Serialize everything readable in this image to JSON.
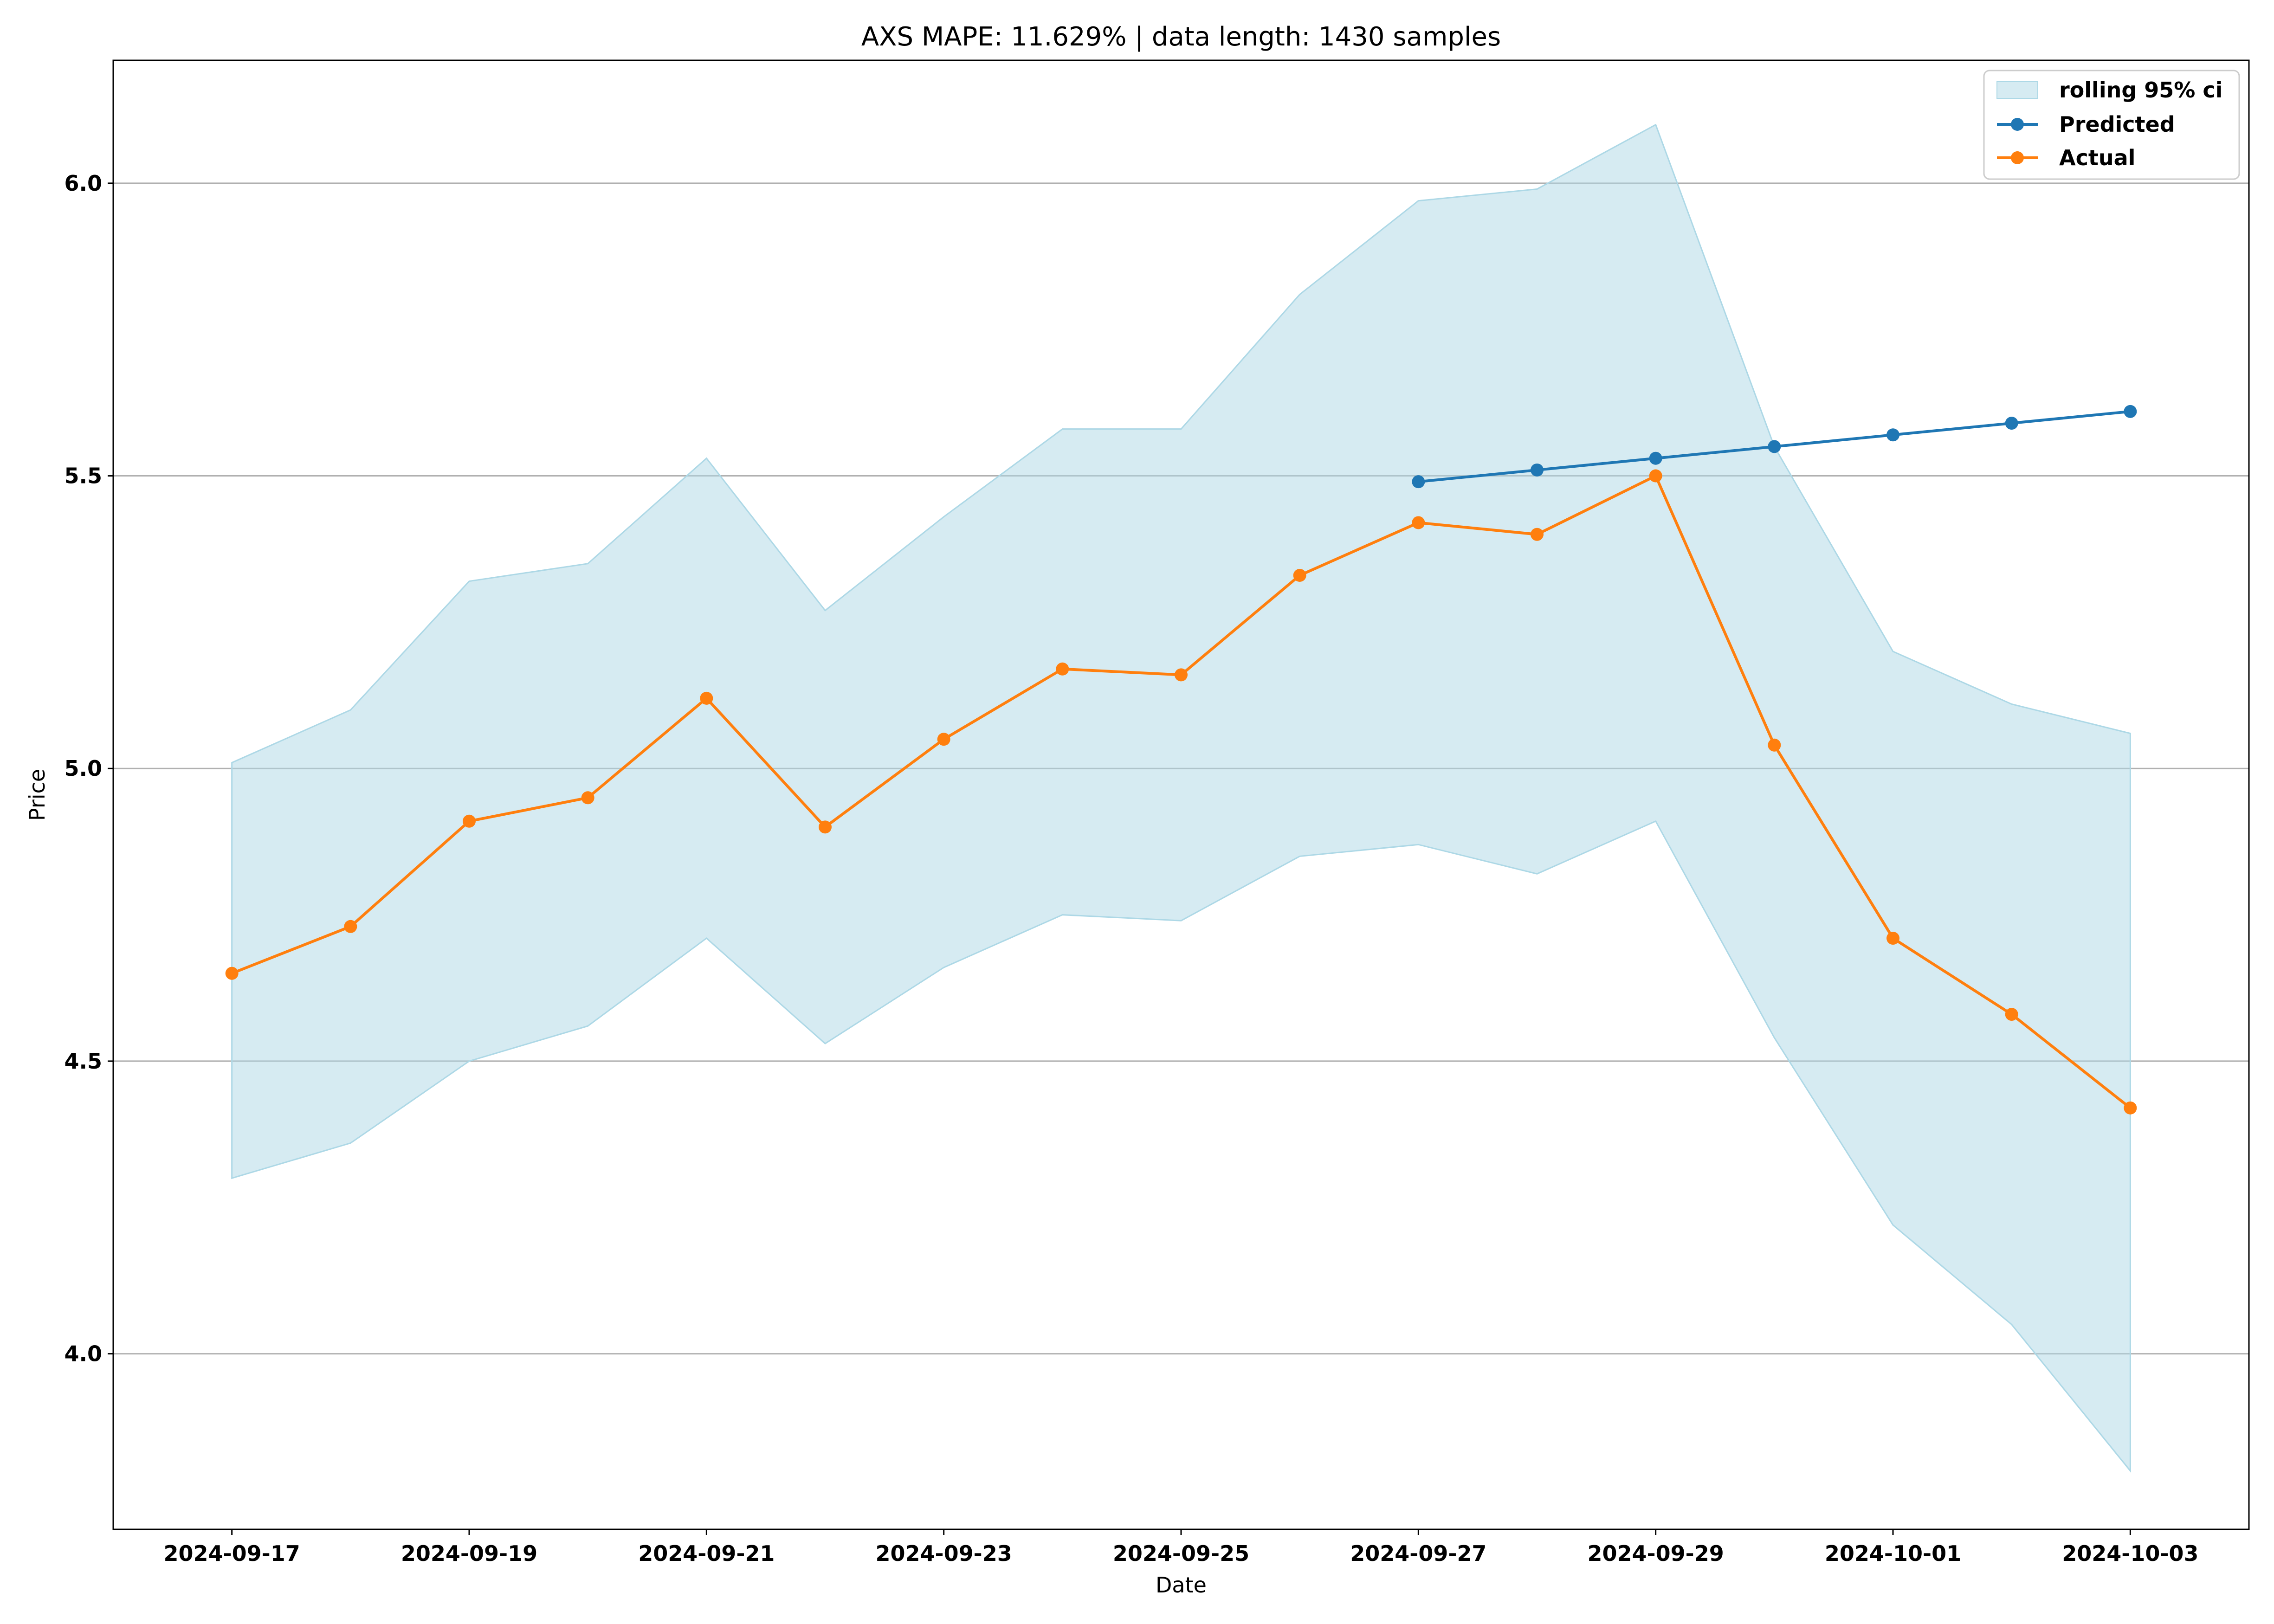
{
  "chart_data": {
    "type": "line",
    "title": "AXS MAPE: 11.629% | data length: 1430 samples",
    "xlabel": "Date",
    "ylabel": "Price",
    "grid": "horizontal",
    "legend_position": "top-right",
    "x_ticks": [
      "2024-09-17",
      "2024-09-19",
      "2024-09-21",
      "2024-09-23",
      "2024-09-25",
      "2024-09-27",
      "2024-09-29",
      "2024-10-01",
      "2024-10-03"
    ],
    "y_ticks": [
      4.0,
      4.5,
      5.0,
      5.5,
      6.0
    ],
    "y_tick_labels": [
      "4.0",
      "4.5",
      "5.0",
      "5.5",
      "6.0"
    ],
    "xlim": [
      "2024-09-16",
      "2024-10-04"
    ],
    "ylim": [
      3.7,
      6.21
    ],
    "band": {
      "name": "rolling 95% ci",
      "color": "#add8e6",
      "x": [
        "2024-09-17",
        "2024-09-18",
        "2024-09-19",
        "2024-09-20",
        "2024-09-21",
        "2024-09-22",
        "2024-09-23",
        "2024-09-24",
        "2024-09-25",
        "2024-09-26",
        "2024-09-27",
        "2024-09-28",
        "2024-09-29",
        "2024-09-30",
        "2024-10-01",
        "2024-10-02",
        "2024-10-03"
      ],
      "upper": [
        5.01,
        5.1,
        5.32,
        5.35,
        5.53,
        5.27,
        5.43,
        5.58,
        5.58,
        5.81,
        5.97,
        5.99,
        6.1,
        5.55,
        5.2,
        5.11,
        5.06
      ],
      "lower": [
        4.3,
        4.36,
        4.5,
        4.56,
        4.71,
        4.53,
        4.66,
        4.75,
        4.74,
        4.85,
        4.87,
        4.82,
        4.91,
        4.54,
        4.22,
        4.05,
        3.8
      ]
    },
    "series": [
      {
        "name": "Predicted",
        "color": "#1f77b4",
        "x": [
          "2024-09-27",
          "2024-09-28",
          "2024-09-29",
          "2024-09-30",
          "2024-10-01",
          "2024-10-02",
          "2024-10-03"
        ],
        "values": [
          5.49,
          5.51,
          5.53,
          5.55,
          5.57,
          5.59,
          5.61
        ]
      },
      {
        "name": "Actual",
        "color": "#ff7f0e",
        "x": [
          "2024-09-17",
          "2024-09-18",
          "2024-09-19",
          "2024-09-20",
          "2024-09-21",
          "2024-09-22",
          "2024-09-23",
          "2024-09-24",
          "2024-09-25",
          "2024-09-26",
          "2024-09-27",
          "2024-09-28",
          "2024-09-29",
          "2024-09-30",
          "2024-10-01",
          "2024-10-02",
          "2024-10-03"
        ],
        "values": [
          4.65,
          4.73,
          4.91,
          4.95,
          5.12,
          4.9,
          5.05,
          5.17,
          5.16,
          5.33,
          5.42,
          5.4,
          5.5,
          5.04,
          4.71,
          4.58,
          4.42
        ]
      }
    ]
  }
}
